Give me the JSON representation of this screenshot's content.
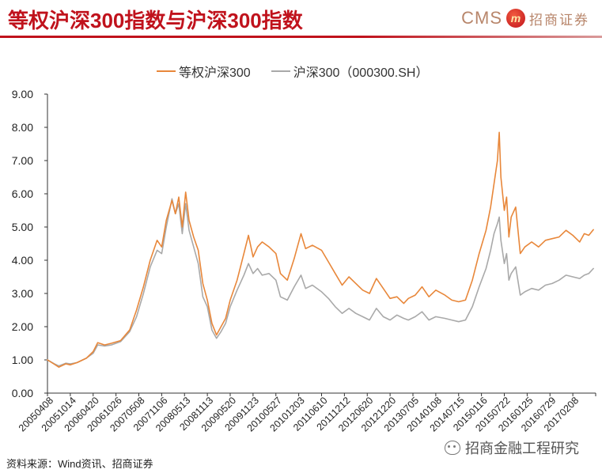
{
  "header": {
    "title": "等权沪深300指数与沪深300指数",
    "logo_cms": "CMS",
    "logo_badge": "m",
    "logo_cn": "招商证券"
  },
  "footer": {
    "source": "资料来源：Wind资讯、招商证券",
    "watermark": "招商金融工程研究"
  },
  "colors": {
    "equal_weight": "#e8873a",
    "hs300": "#a9a9a9",
    "axis": "#333333",
    "title": "#c0121c"
  },
  "chart_data": {
    "type": "line",
    "title": "",
    "xlabel": "",
    "ylabel": "",
    "ylim": [
      0,
      9
    ],
    "yticks": [
      "0.00",
      "1.00",
      "2.00",
      "3.00",
      "4.00",
      "5.00",
      "6.00",
      "7.00",
      "8.00",
      "9.00"
    ],
    "grid": false,
    "legend_position": "top-center",
    "x_tick_labels": [
      "20050408",
      "20051014",
      "20060420",
      "20061026",
      "20070508",
      "20071106",
      "20080513",
      "20081113",
      "20090520",
      "20091123",
      "20100527",
      "20101203",
      "20110610",
      "20111212",
      "20120620",
      "20121220",
      "20130705",
      "20140108",
      "20140715",
      "20150116",
      "20150722",
      "20160125",
      "20160729",
      "20170208"
    ],
    "series": [
      {
        "name": "等权沪深300",
        "color": "#e8873a",
        "points": [
          [
            0,
            1.0
          ],
          [
            0.3,
            0.87
          ],
          [
            0.5,
            0.78
          ],
          [
            0.8,
            0.88
          ],
          [
            1.0,
            0.85
          ],
          [
            1.3,
            0.92
          ],
          [
            1.7,
            1.05
          ],
          [
            2.0,
            1.25
          ],
          [
            2.2,
            1.52
          ],
          [
            2.5,
            1.45
          ],
          [
            2.8,
            1.5
          ],
          [
            3.2,
            1.58
          ],
          [
            3.6,
            1.9
          ],
          [
            3.9,
            2.5
          ],
          [
            4.2,
            3.2
          ],
          [
            4.5,
            4.0
          ],
          [
            4.8,
            4.6
          ],
          [
            5.0,
            4.4
          ],
          [
            5.2,
            5.2
          ],
          [
            5.45,
            5.8
          ],
          [
            5.6,
            5.4
          ],
          [
            5.75,
            5.9
          ],
          [
            5.9,
            5.0
          ],
          [
            6.05,
            6.05
          ],
          [
            6.2,
            5.2
          ],
          [
            6.4,
            4.7
          ],
          [
            6.6,
            4.3
          ],
          [
            6.8,
            3.3
          ],
          [
            7.0,
            2.8
          ],
          [
            7.2,
            2.1
          ],
          [
            7.4,
            1.75
          ],
          [
            7.6,
            2.0
          ],
          [
            7.8,
            2.25
          ],
          [
            8.0,
            2.8
          ],
          [
            8.3,
            3.4
          ],
          [
            8.6,
            4.2
          ],
          [
            8.8,
            4.75
          ],
          [
            9.0,
            4.1
          ],
          [
            9.2,
            4.4
          ],
          [
            9.4,
            4.55
          ],
          [
            9.7,
            4.4
          ],
          [
            10.0,
            4.2
          ],
          [
            10.2,
            3.6
          ],
          [
            10.5,
            3.4
          ],
          [
            10.8,
            4.05
          ],
          [
            11.1,
            4.8
          ],
          [
            11.3,
            4.35
          ],
          [
            11.6,
            4.45
          ],
          [
            12.0,
            4.3
          ],
          [
            12.3,
            3.95
          ],
          [
            12.6,
            3.6
          ],
          [
            12.9,
            3.25
          ],
          [
            13.2,
            3.5
          ],
          [
            13.5,
            3.3
          ],
          [
            13.8,
            3.1
          ],
          [
            14.1,
            3.0
          ],
          [
            14.4,
            3.45
          ],
          [
            14.7,
            3.15
          ],
          [
            15.0,
            2.85
          ],
          [
            15.3,
            2.9
          ],
          [
            15.6,
            2.7
          ],
          [
            15.8,
            2.85
          ],
          [
            16.1,
            2.95
          ],
          [
            16.4,
            3.2
          ],
          [
            16.7,
            2.9
          ],
          [
            17.0,
            3.1
          ],
          [
            17.4,
            2.95
          ],
          [
            17.7,
            2.8
          ],
          [
            18.0,
            2.75
          ],
          [
            18.3,
            2.8
          ],
          [
            18.6,
            3.4
          ],
          [
            18.9,
            4.2
          ],
          [
            19.2,
            4.9
          ],
          [
            19.4,
            5.6
          ],
          [
            19.55,
            6.3
          ],
          [
            19.7,
            7.0
          ],
          [
            19.78,
            7.85
          ],
          [
            19.85,
            6.5
          ],
          [
            20.0,
            5.5
          ],
          [
            20.1,
            5.9
          ],
          [
            20.2,
            4.7
          ],
          [
            20.3,
            5.3
          ],
          [
            20.5,
            5.6
          ],
          [
            20.7,
            4.2
          ],
          [
            20.9,
            4.4
          ],
          [
            21.2,
            4.55
          ],
          [
            21.5,
            4.4
          ],
          [
            21.8,
            4.6
          ],
          [
            22.1,
            4.65
          ],
          [
            22.4,
            4.7
          ],
          [
            22.7,
            4.9
          ],
          [
            23.0,
            4.75
          ],
          [
            23.3,
            4.55
          ],
          [
            23.5,
            4.8
          ],
          [
            23.7,
            4.75
          ],
          [
            23.9,
            4.92
          ]
        ]
      },
      {
        "name": "沪深300（000300.SH）",
        "color": "#a9a9a9",
        "points": [
          [
            0,
            1.0
          ],
          [
            0.3,
            0.88
          ],
          [
            0.5,
            0.82
          ],
          [
            0.8,
            0.9
          ],
          [
            1.0,
            0.88
          ],
          [
            1.3,
            0.92
          ],
          [
            1.7,
            1.05
          ],
          [
            2.0,
            1.2
          ],
          [
            2.2,
            1.45
          ],
          [
            2.5,
            1.42
          ],
          [
            2.8,
            1.45
          ],
          [
            3.2,
            1.55
          ],
          [
            3.6,
            1.85
          ],
          [
            3.9,
            2.3
          ],
          [
            4.2,
            3.0
          ],
          [
            4.5,
            3.8
          ],
          [
            4.8,
            4.3
          ],
          [
            5.0,
            4.2
          ],
          [
            5.2,
            5.0
          ],
          [
            5.45,
            5.85
          ],
          [
            5.6,
            5.4
          ],
          [
            5.75,
            5.7
          ],
          [
            5.9,
            4.8
          ],
          [
            6.05,
            5.7
          ],
          [
            6.2,
            4.9
          ],
          [
            6.4,
            4.4
          ],
          [
            6.6,
            3.9
          ],
          [
            6.8,
            2.9
          ],
          [
            7.0,
            2.6
          ],
          [
            7.2,
            1.9
          ],
          [
            7.4,
            1.65
          ],
          [
            7.6,
            1.85
          ],
          [
            7.8,
            2.1
          ],
          [
            8.0,
            2.6
          ],
          [
            8.3,
            3.1
          ],
          [
            8.6,
            3.55
          ],
          [
            8.8,
            3.9
          ],
          [
            9.0,
            3.6
          ],
          [
            9.2,
            3.75
          ],
          [
            9.4,
            3.55
          ],
          [
            9.7,
            3.6
          ],
          [
            10.0,
            3.4
          ],
          [
            10.2,
            2.9
          ],
          [
            10.5,
            2.8
          ],
          [
            10.8,
            3.2
          ],
          [
            11.1,
            3.55
          ],
          [
            11.3,
            3.15
          ],
          [
            11.6,
            3.25
          ],
          [
            12.0,
            3.05
          ],
          [
            12.3,
            2.85
          ],
          [
            12.6,
            2.6
          ],
          [
            12.9,
            2.4
          ],
          [
            13.2,
            2.55
          ],
          [
            13.5,
            2.4
          ],
          [
            13.8,
            2.3
          ],
          [
            14.1,
            2.2
          ],
          [
            14.4,
            2.55
          ],
          [
            14.7,
            2.3
          ],
          [
            15.0,
            2.2
          ],
          [
            15.3,
            2.35
          ],
          [
            15.6,
            2.25
          ],
          [
            15.8,
            2.2
          ],
          [
            16.1,
            2.3
          ],
          [
            16.4,
            2.45
          ],
          [
            16.7,
            2.2
          ],
          [
            17.0,
            2.3
          ],
          [
            17.4,
            2.25
          ],
          [
            17.7,
            2.2
          ],
          [
            18.0,
            2.15
          ],
          [
            18.3,
            2.2
          ],
          [
            18.6,
            2.6
          ],
          [
            18.9,
            3.2
          ],
          [
            19.2,
            3.75
          ],
          [
            19.4,
            4.3
          ],
          [
            19.55,
            4.8
          ],
          [
            19.7,
            5.1
          ],
          [
            19.78,
            5.3
          ],
          [
            19.85,
            4.6
          ],
          [
            20.0,
            3.9
          ],
          [
            20.1,
            4.2
          ],
          [
            20.2,
            3.4
          ],
          [
            20.3,
            3.6
          ],
          [
            20.5,
            3.8
          ],
          [
            20.7,
            2.95
          ],
          [
            20.9,
            3.05
          ],
          [
            21.2,
            3.15
          ],
          [
            21.5,
            3.1
          ],
          [
            21.8,
            3.25
          ],
          [
            22.1,
            3.3
          ],
          [
            22.4,
            3.4
          ],
          [
            22.7,
            3.55
          ],
          [
            23.0,
            3.5
          ],
          [
            23.3,
            3.45
          ],
          [
            23.5,
            3.55
          ],
          [
            23.7,
            3.6
          ],
          [
            23.9,
            3.75
          ]
        ]
      }
    ]
  }
}
